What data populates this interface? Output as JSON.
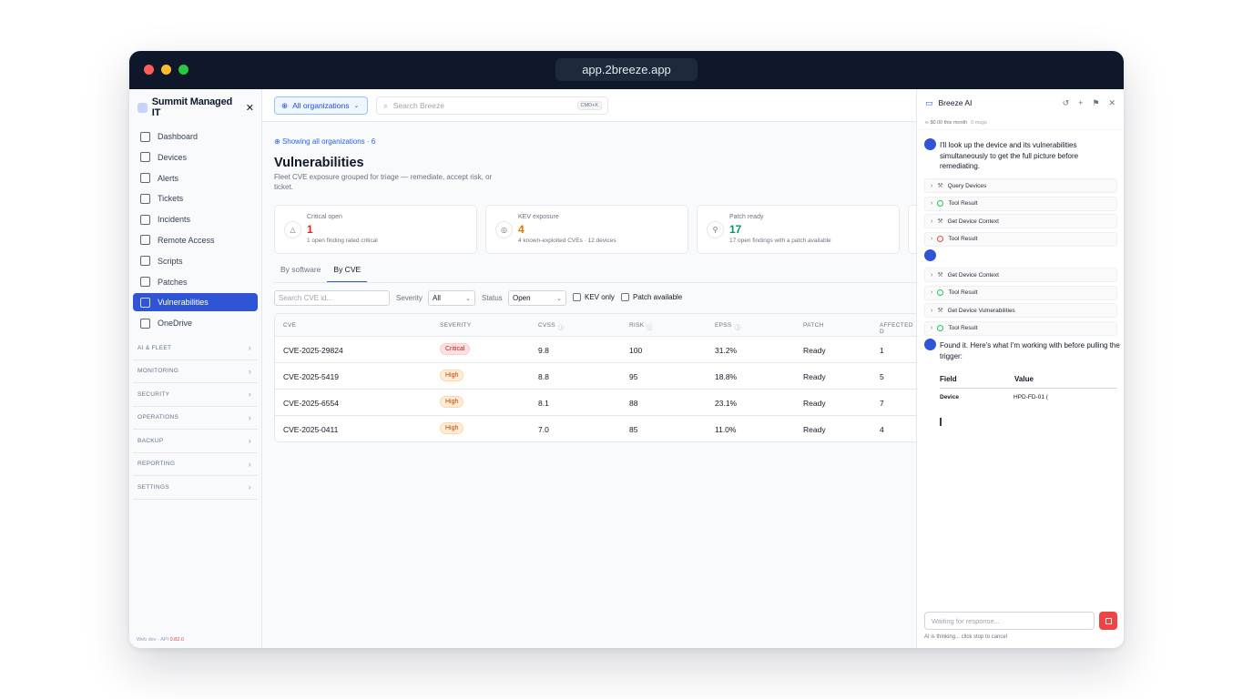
{
  "browser": {
    "url": "app.2breeze.app"
  },
  "sidebar": {
    "brand": "Summit Managed IT",
    "nav": [
      {
        "label": "Dashboard",
        "icon": "dashboard-icon"
      },
      {
        "label": "Devices",
        "icon": "monitor-icon"
      },
      {
        "label": "Alerts",
        "icon": "bell-icon"
      },
      {
        "label": "Tickets",
        "icon": "ticket-icon"
      },
      {
        "label": "Incidents",
        "icon": "shield-icon"
      },
      {
        "label": "Remote Access",
        "icon": "terminal-icon"
      },
      {
        "label": "Scripts",
        "icon": "file-code-icon"
      },
      {
        "label": "Patches",
        "icon": "download-icon"
      },
      {
        "label": "Vulnerabilities",
        "icon": "bug-icon"
      },
      {
        "label": "OneDrive",
        "icon": "cloud-icon"
      }
    ],
    "groups": [
      "AI & FLEET",
      "MONITORING",
      "SECURITY",
      "OPERATIONS",
      "BACKUP",
      "REPORTING",
      "SETTINGS"
    ],
    "footer_prefix": "Web dev · API",
    "footer_version": "0.82.0"
  },
  "topbar": {
    "org_label": "All organizations",
    "search_placeholder": "Search Breeze",
    "shortcut": "CMD+K"
  },
  "page": {
    "showing": "Showing all organizations · 6",
    "title": "Vulnerabilities",
    "subtitle": "Fleet CVE exposure grouped for triage — remediate, accept risk, or ticket."
  },
  "cards": [
    {
      "label": "Critical open",
      "value": "1",
      "note": "1 open finding rated critical",
      "color": "#dc2626",
      "icon": "alert-triangle-icon"
    },
    {
      "label": "KEV exposure",
      "value": "4",
      "note": "4 known-exploited CVEs · 12 devices",
      "color": "#d97706",
      "icon": "shield-alert-icon"
    },
    {
      "label": "Patch ready",
      "value": "17",
      "note": "17 open findings with a patch available",
      "color": "#059669",
      "icon": "wrench-icon"
    }
  ],
  "tabs": [
    "By software",
    "By CVE"
  ],
  "filters": {
    "search_placeholder": "Search CVE id...",
    "severity_label": "Severity",
    "severity_value": "All",
    "status_label": "Status",
    "status_value": "Open",
    "kev_label": "KEV only",
    "patch_label": "Patch available"
  },
  "table": {
    "columns": [
      "CVE",
      "SEVERITY",
      "CVSS",
      "RISK",
      "EPSS",
      "PATCH",
      "AFFECTED D"
    ],
    "rows": [
      {
        "cve": "CVE-2025-29824",
        "severity": "Critical",
        "cvss": "9.8",
        "risk": "100",
        "epss": "31.2%",
        "patch": "Ready",
        "affected": "1"
      },
      {
        "cve": "CVE-2025-5419",
        "severity": "High",
        "cvss": "8.8",
        "risk": "95",
        "epss": "18.8%",
        "patch": "Ready",
        "affected": "5"
      },
      {
        "cve": "CVE-2025-6554",
        "severity": "High",
        "cvss": "8.1",
        "risk": "88",
        "epss": "23.1%",
        "patch": "Ready",
        "affected": "7"
      },
      {
        "cve": "CVE-2025-0411",
        "severity": "High",
        "cvss": "7.0",
        "risk": "85",
        "epss": "11.0%",
        "patch": "Ready",
        "affected": "4"
      }
    ]
  },
  "chat": {
    "title": "Breeze AI",
    "cost": "$0.00 this month",
    "msgs": "0 msgs",
    "message1": "I'll look up the device and its vulnerabilities simultaneously to get the full picture before remediating.",
    "tools1": [
      {
        "label": "Query Devices",
        "status": "running"
      },
      {
        "label": "Tool Result",
        "status": "ok"
      },
      {
        "label": "Get Device Context",
        "status": "running"
      },
      {
        "label": "Tool Result",
        "status": "error"
      }
    ],
    "tools2": [
      {
        "label": "Get Device Context",
        "status": "running"
      },
      {
        "label": "Tool Result",
        "status": "ok"
      },
      {
        "label": "Get Device Vulnerabilities",
        "status": "running"
      },
      {
        "label": "Tool Result",
        "status": "ok"
      }
    ],
    "message2": "Found it. Here's what I'm working with before pulling the trigger:",
    "field_header": "Field",
    "value_header": "Value",
    "field_row_label": "Device",
    "field_row_value": "HPD-FD-01 (",
    "input_placeholder": "Waiting for response...",
    "thinking": "AI is thinking... click stop to cancel"
  }
}
